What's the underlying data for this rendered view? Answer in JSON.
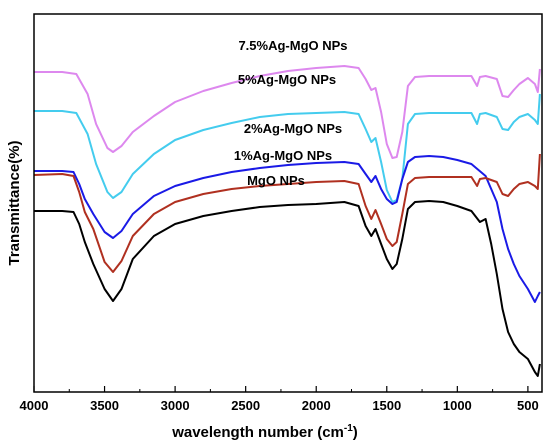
{
  "chart_data": {
    "type": "line",
    "title": "",
    "xlabel": "wavelength number (cm",
    "xlabel_sup": "-1",
    "xlabel_close": ")",
    "ylabel": "Transmittance(%)",
    "xlim": [
      4000,
      400
    ],
    "x_reversed": true,
    "y_ticks_shown": false,
    "grid": false,
    "x_tick_labels": [
      "4000",
      "3500",
      "3000",
      "2500",
      "2000",
      "1500",
      "1000",
      "500"
    ],
    "x_ticks": [
      4000,
      3500,
      3000,
      2500,
      2000,
      1500,
      1000,
      500
    ],
    "series": [
      {
        "name": "7.5%Ag-MgO NPs",
        "color": "#dd88ee",
        "points": [
          [
            4000,
            58
          ],
          [
            3800,
            58
          ],
          [
            3700,
            60
          ],
          [
            3620,
            80
          ],
          [
            3560,
            110
          ],
          [
            3480,
            134
          ],
          [
            3440,
            138
          ],
          [
            3380,
            132
          ],
          [
            3300,
            118
          ],
          [
            3150,
            102
          ],
          [
            3000,
            88
          ],
          [
            2800,
            77
          ],
          [
            2600,
            69
          ],
          [
            2400,
            62
          ],
          [
            2200,
            57
          ],
          [
            2000,
            54
          ],
          [
            1800,
            52
          ],
          [
            1700,
            54
          ],
          [
            1650,
            65
          ],
          [
            1610,
            76
          ],
          [
            1580,
            74
          ],
          [
            1540,
            98
          ],
          [
            1500,
            130
          ],
          [
            1460,
            144
          ],
          [
            1430,
            143
          ],
          [
            1390,
            118
          ],
          [
            1350,
            72
          ],
          [
            1300,
            63
          ],
          [
            1200,
            62
          ],
          [
            1100,
            62
          ],
          [
            1000,
            62
          ],
          [
            900,
            62
          ],
          [
            860,
            72
          ],
          [
            840,
            63
          ],
          [
            800,
            62
          ],
          [
            720,
            65
          ],
          [
            680,
            82
          ],
          [
            640,
            83
          ],
          [
            600,
            76
          ],
          [
            560,
            70
          ],
          [
            500,
            64
          ],
          [
            450,
            70
          ],
          [
            430,
            78
          ],
          [
            415,
            55
          ]
        ]
      },
      {
        "name": "5%Ag-MgO NPs",
        "color": "#44ccee",
        "points": [
          [
            4000,
            97
          ],
          [
            3800,
            97
          ],
          [
            3700,
            99
          ],
          [
            3620,
            120
          ],
          [
            3560,
            150
          ],
          [
            3480,
            178
          ],
          [
            3440,
            184
          ],
          [
            3380,
            178
          ],
          [
            3300,
            160
          ],
          [
            3150,
            140
          ],
          [
            3000,
            126
          ],
          [
            2800,
            116
          ],
          [
            2600,
            109
          ],
          [
            2400,
            103
          ],
          [
            2200,
            100
          ],
          [
            2000,
            99
          ],
          [
            1800,
            98
          ],
          [
            1700,
            100
          ],
          [
            1650,
            115
          ],
          [
            1610,
            128
          ],
          [
            1580,
            124
          ],
          [
            1540,
            148
          ],
          [
            1500,
            176
          ],
          [
            1460,
            188
          ],
          [
            1430,
            186
          ],
          [
            1390,
            165
          ],
          [
            1350,
            110
          ],
          [
            1300,
            100
          ],
          [
            1200,
            99
          ],
          [
            1100,
            99
          ],
          [
            1000,
            99
          ],
          [
            900,
            99
          ],
          [
            860,
            110
          ],
          [
            840,
            100
          ],
          [
            800,
            99
          ],
          [
            720,
            103
          ],
          [
            680,
            115
          ],
          [
            640,
            116
          ],
          [
            600,
            108
          ],
          [
            560,
            103
          ],
          [
            500,
            100
          ],
          [
            450,
            106
          ],
          [
            430,
            110
          ],
          [
            415,
            80
          ]
        ]
      },
      {
        "name": "2%Ag-MgO NPs",
        "color": "#1a1ae6",
        "points": [
          [
            4000,
            157
          ],
          [
            3800,
            157
          ],
          [
            3720,
            158
          ],
          [
            3680,
            170
          ],
          [
            3640,
            185
          ],
          [
            3580,
            200
          ],
          [
            3500,
            218
          ],
          [
            3440,
            224
          ],
          [
            3380,
            217
          ],
          [
            3300,
            200
          ],
          [
            3150,
            182
          ],
          [
            3000,
            172
          ],
          [
            2800,
            164
          ],
          [
            2600,
            158
          ],
          [
            2400,
            154
          ],
          [
            2200,
            151
          ],
          [
            2000,
            149
          ],
          [
            1800,
            148
          ],
          [
            1700,
            150
          ],
          [
            1650,
            160
          ],
          [
            1610,
            168
          ],
          [
            1580,
            162
          ],
          [
            1540,
            175
          ],
          [
            1500,
            185
          ],
          [
            1460,
            190
          ],
          [
            1430,
            188
          ],
          [
            1390,
            165
          ],
          [
            1350,
            148
          ],
          [
            1300,
            143
          ],
          [
            1200,
            142
          ],
          [
            1100,
            143
          ],
          [
            1000,
            146
          ],
          [
            900,
            150
          ],
          [
            800,
            162
          ],
          [
            720,
            188
          ],
          [
            680,
            215
          ],
          [
            640,
            235
          ],
          [
            600,
            250
          ],
          [
            560,
            262
          ],
          [
            500,
            275
          ],
          [
            450,
            288
          ],
          [
            430,
            282
          ],
          [
            415,
            278
          ]
        ]
      },
      {
        "name": "1%Ag-MgO NPs",
        "color": "#b03020",
        "points": [
          [
            4000,
            161
          ],
          [
            3800,
            160
          ],
          [
            3720,
            162
          ],
          [
            3680,
            178
          ],
          [
            3640,
            198
          ],
          [
            3580,
            215
          ],
          [
            3500,
            248
          ],
          [
            3440,
            258
          ],
          [
            3380,
            247
          ],
          [
            3300,
            222
          ],
          [
            3150,
            200
          ],
          [
            3000,
            188
          ],
          [
            2800,
            180
          ],
          [
            2600,
            175
          ],
          [
            2400,
            172
          ],
          [
            2200,
            170
          ],
          [
            2000,
            168
          ],
          [
            1800,
            167
          ],
          [
            1700,
            170
          ],
          [
            1650,
            192
          ],
          [
            1610,
            205
          ],
          [
            1580,
            196
          ],
          [
            1540,
            210
          ],
          [
            1500,
            225
          ],
          [
            1460,
            232
          ],
          [
            1430,
            228
          ],
          [
            1390,
            200
          ],
          [
            1350,
            170
          ],
          [
            1300,
            164
          ],
          [
            1200,
            163
          ],
          [
            1100,
            163
          ],
          [
            1000,
            163
          ],
          [
            900,
            163
          ],
          [
            860,
            172
          ],
          [
            840,
            165
          ],
          [
            800,
            164
          ],
          [
            720,
            168
          ],
          [
            680,
            180
          ],
          [
            640,
            182
          ],
          [
            600,
            175
          ],
          [
            560,
            170
          ],
          [
            500,
            168
          ],
          [
            450,
            172
          ],
          [
            430,
            175
          ],
          [
            415,
            140
          ]
        ]
      },
      {
        "name": "MgO NPs",
        "color": "#000000",
        "points": [
          [
            4000,
            197
          ],
          [
            3800,
            197
          ],
          [
            3720,
            198
          ],
          [
            3680,
            210
          ],
          [
            3640,
            228
          ],
          [
            3580,
            250
          ],
          [
            3500,
            275
          ],
          [
            3440,
            287
          ],
          [
            3380,
            275
          ],
          [
            3300,
            245
          ],
          [
            3150,
            222
          ],
          [
            3000,
            210
          ],
          [
            2800,
            202
          ],
          [
            2600,
            197
          ],
          [
            2400,
            193
          ],
          [
            2200,
            191
          ],
          [
            2000,
            190
          ],
          [
            1800,
            188
          ],
          [
            1700,
            192
          ],
          [
            1650,
            212
          ],
          [
            1610,
            222
          ],
          [
            1580,
            215
          ],
          [
            1540,
            230
          ],
          [
            1500,
            245
          ],
          [
            1460,
            255
          ],
          [
            1430,
            250
          ],
          [
            1390,
            225
          ],
          [
            1350,
            195
          ],
          [
            1300,
            188
          ],
          [
            1200,
            187
          ],
          [
            1100,
            188
          ],
          [
            1000,
            192
          ],
          [
            900,
            197
          ],
          [
            840,
            208
          ],
          [
            800,
            205
          ],
          [
            760,
            230
          ],
          [
            720,
            260
          ],
          [
            680,
            295
          ],
          [
            640,
            318
          ],
          [
            600,
            330
          ],
          [
            560,
            338
          ],
          [
            500,
            345
          ],
          [
            450,
            358
          ],
          [
            430,
            362
          ],
          [
            415,
            350
          ]
        ]
      }
    ]
  }
}
